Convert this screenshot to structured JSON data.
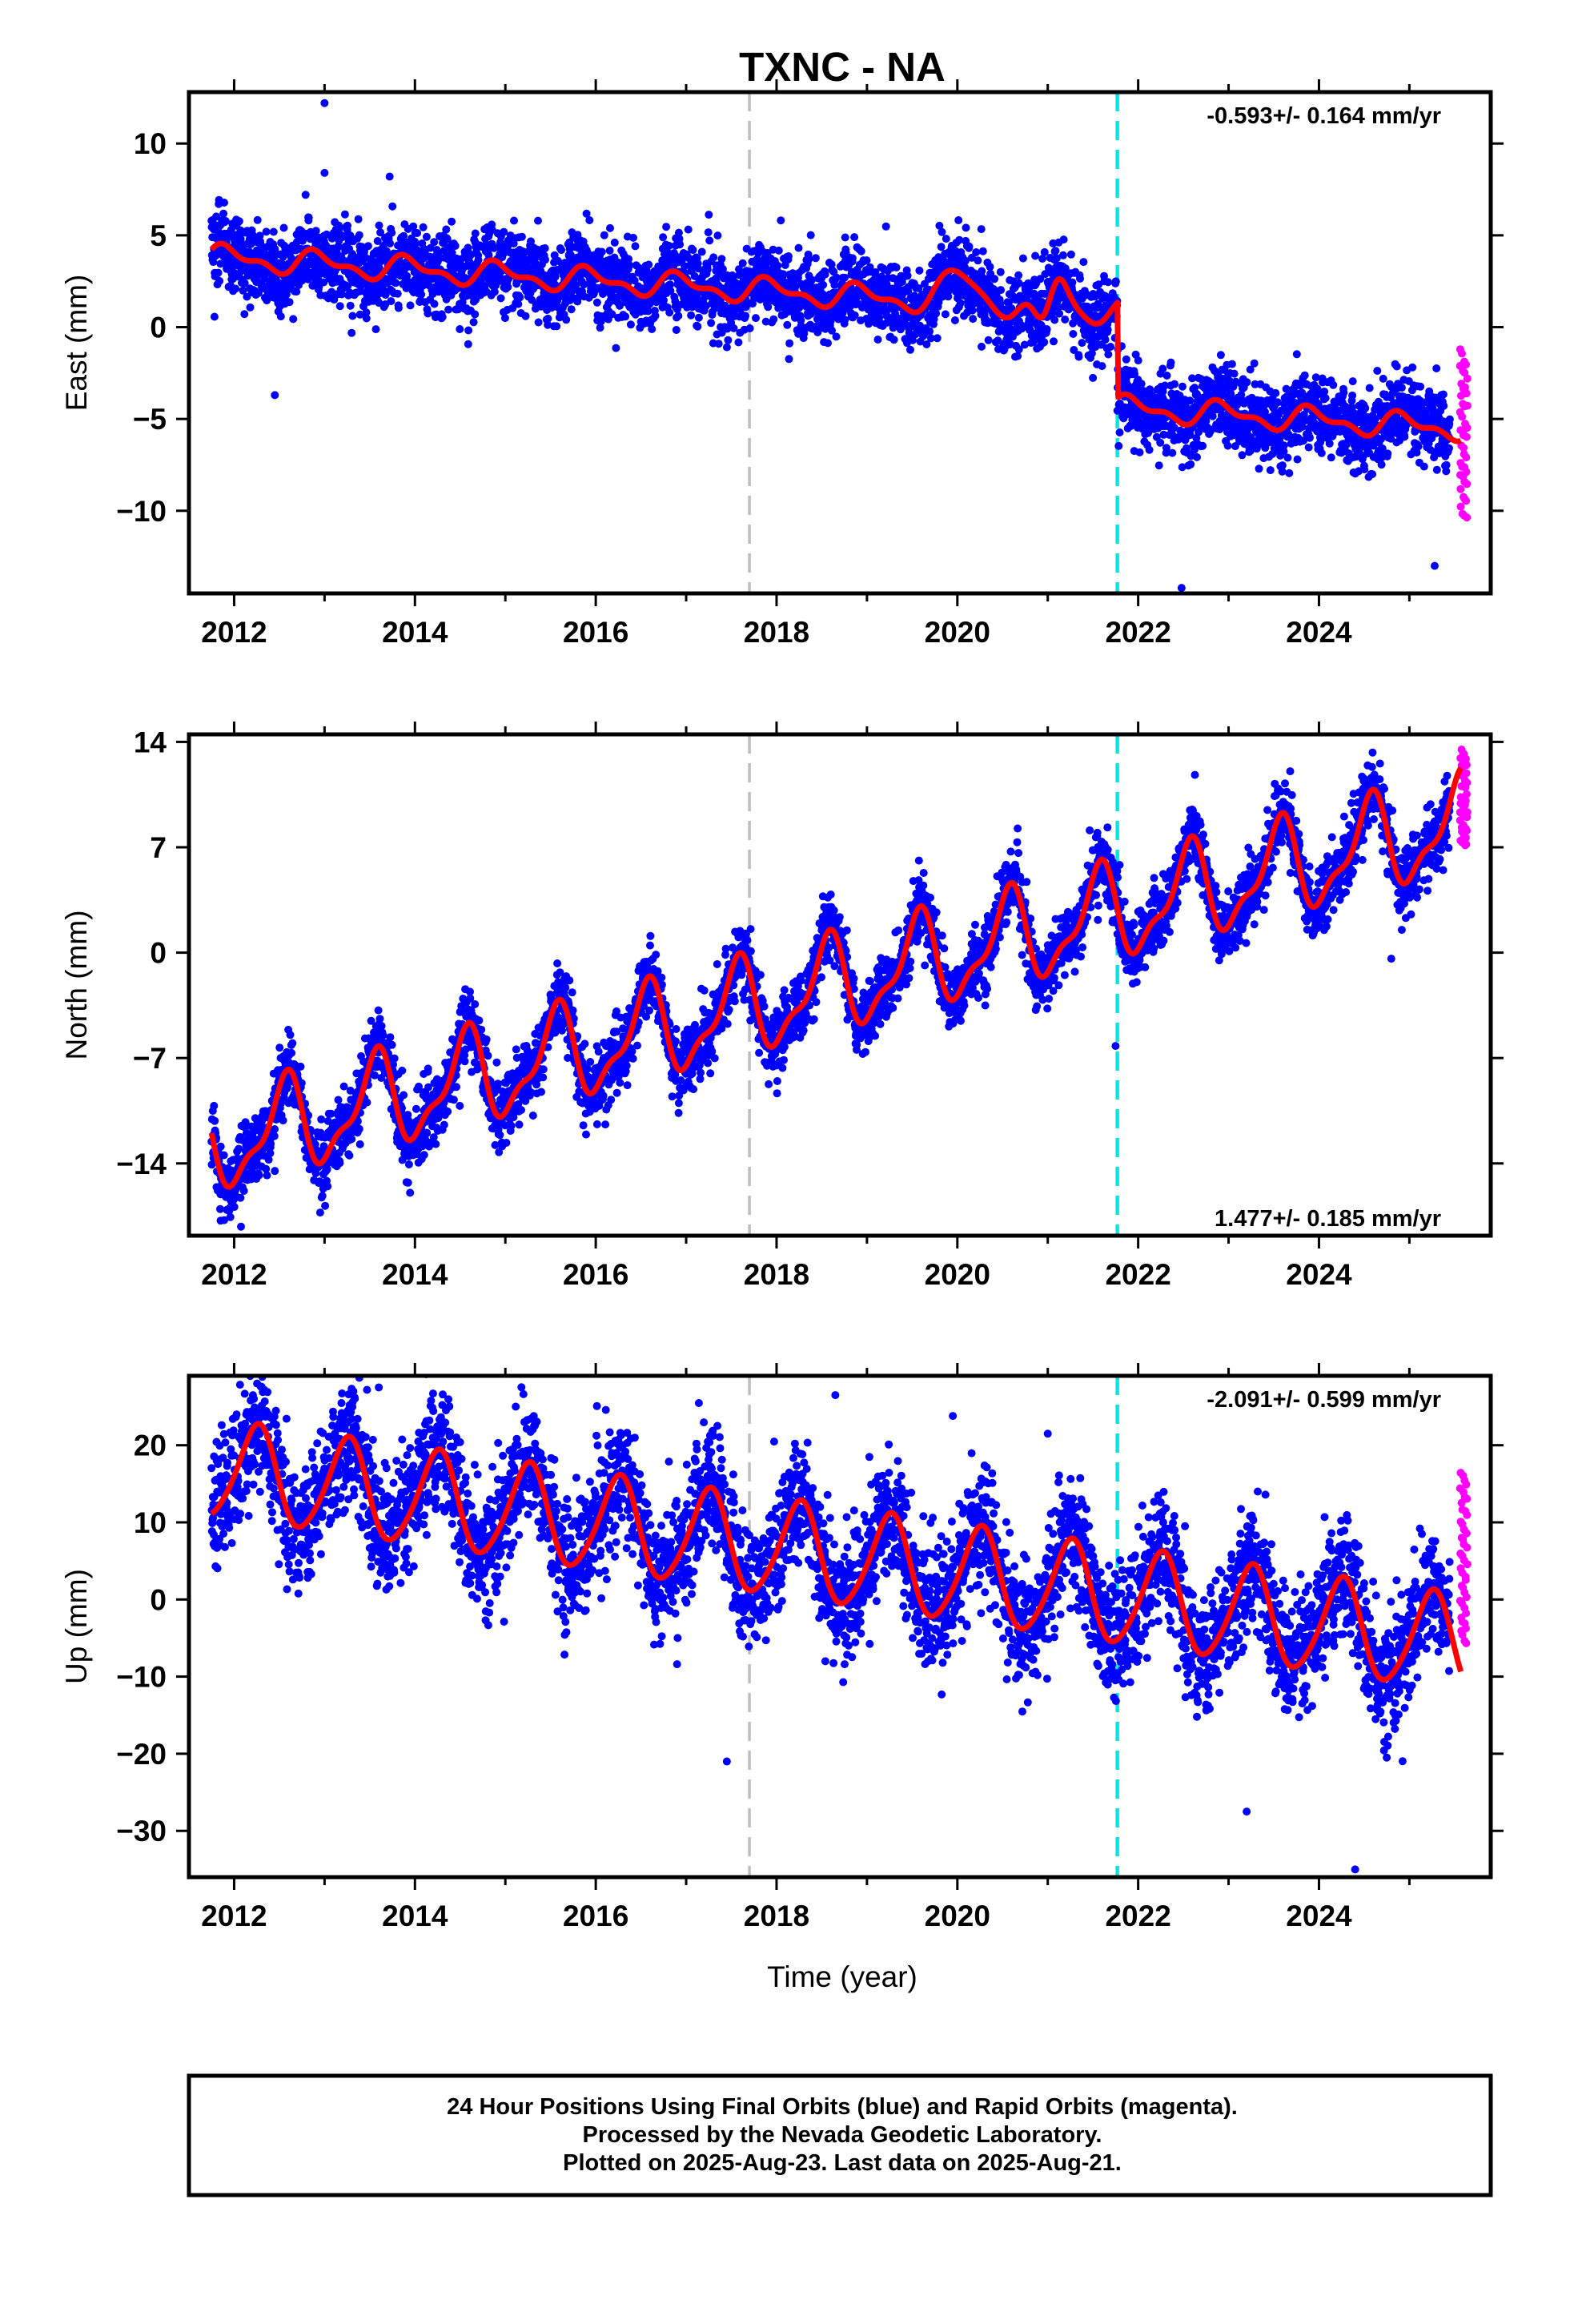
{
  "title": "TXNC - NA",
  "xlabel": "Time (year)",
  "caption": [
    "24 Hour Positions Using Final Orbits (blue) and Rapid Orbits (magenta).",
    "Processed by the Nevada Geodetic Laboratory.",
    "Plotted on 2025-Aug-23. Last data on 2025-Aug-21."
  ],
  "colors": {
    "final": "#0000ff",
    "rapid": "#ff00ff",
    "model": "#ff0000",
    "equipment_change": "#bebebe",
    "earthquake": "#00e5e5"
  },
  "chart_data": [
    {
      "type": "scatter",
      "panel": "East",
      "ylabel": "East (mm)",
      "rate": "-0.593+/- 0.164 mm/yr",
      "xlim": [
        2011.5,
        2025.9
      ],
      "ylim": [
        -14.5,
        12.8
      ],
      "yticks": [
        10,
        5,
        0,
        -5,
        -10
      ],
      "xticks": [
        2012,
        2014,
        2016,
        2018,
        2020,
        2022,
        2024
      ],
      "vlines": [
        {
          "x": 2017.7,
          "kind": "equipment_change"
        },
        {
          "x": 2021.77,
          "kind": "earthquake"
        }
      ],
      "offsets": [
        {
          "x": 2021.77,
          "jump": -5.2
        }
      ],
      "model": {
        "trend": -0.3,
        "annual": 0.55,
        "annual_phase": 0.12,
        "semiannual": 0.3,
        "semi_phase": 0.6,
        "anchor": [
          2011.8,
          3.8
        ]
      },
      "bumps": [
        {
          "x": 2020.05,
          "amp": 1.4,
          "w": 0.25
        },
        {
          "x": 2020.95,
          "amp": -1.8,
          "w": 0.15
        },
        {
          "x": 2021.1,
          "amp": 2.2,
          "w": 0.15
        }
      ],
      "scatter_sd": 1.05,
      "series": [
        {
          "name": "Final Orbits",
          "range": [
            2011.75,
            2025.45
          ]
        },
        {
          "name": "Rapid Orbits",
          "range": [
            2025.45,
            2025.63
          ],
          "y": [
            -1.3,
            -10.4
          ]
        }
      ],
      "outliers": [
        [
          2013.0,
          12.2
        ],
        [
          2012.45,
          -3.7
        ],
        [
          2022.48,
          -14.2
        ],
        [
          2025.28,
          -13.0
        ],
        [
          2013.0,
          8.4
        ],
        [
          2013.72,
          8.2
        ]
      ]
    },
    {
      "type": "scatter",
      "panel": "North",
      "ylabel": "North (mm)",
      "rate": "1.477+/- 0.185 mm/yr",
      "xlim": [
        2011.5,
        2025.9
      ],
      "ylim": [
        -18.8,
        14.5
      ],
      "yticks": [
        14,
        7,
        0,
        -7,
        -14
      ],
      "xticks": [
        2012,
        2014,
        2016,
        2018,
        2020,
        2022,
        2024
      ],
      "vlines": [
        {
          "x": 2017.7,
          "kind": "equipment_change"
        },
        {
          "x": 2021.77,
          "kind": "earthquake"
        }
      ],
      "offsets": [],
      "model": {
        "trend": 1.55,
        "annual": 2.9,
        "annual_phase": 0.5,
        "semiannual": 1.1,
        "semi_phase": 0.3,
        "anchor": [
          2011.8,
          -12.8
        ]
      },
      "bumps": [],
      "scatter_sd": 1.1,
      "series": [
        {
          "name": "Final Orbits",
          "range": [
            2011.75,
            2025.45
          ]
        },
        {
          "name": "Rapid Orbits",
          "range": [
            2025.45,
            2025.63
          ],
          "y": [
            13.5,
            7.1
          ]
        }
      ],
      "outliers": [
        [
          2011.85,
          -17.8
        ],
        [
          2024.8,
          -0.4
        ],
        [
          2012.45,
          -14.5
        ],
        [
          2021.75,
          -6.2
        ]
      ]
    },
    {
      "type": "scatter",
      "panel": "Up",
      "ylabel": "Up (mm)",
      "rate": "-2.091+/- 0.599 mm/yr",
      "xlim": [
        2011.5,
        2025.9
      ],
      "ylim": [
        -36.0,
        29.0
      ],
      "yticks": [
        20,
        10,
        0,
        -10,
        -20,
        -30
      ],
      "xticks": [
        2012,
        2014,
        2016,
        2018,
        2020,
        2022,
        2024
      ],
      "vlines": [
        {
          "x": 2017.7,
          "kind": "equipment_change"
        },
        {
          "x": 2021.77,
          "kind": "earthquake"
        }
      ],
      "offsets": [],
      "model": {
        "trend": -1.65,
        "annual": 6.2,
        "annual_phase": 0.8,
        "semiannual": 0.8,
        "semi_phase": 0.1,
        "anchor": [
          2011.8,
          16.8
        ]
      },
      "bumps": [],
      "scatter_sd": 4.0,
      "series": [
        {
          "name": "Final Orbits",
          "range": [
            2011.75,
            2025.45
          ]
        },
        {
          "name": "Rapid Orbits",
          "range": [
            2025.45,
            2025.63
          ],
          "y": [
            16.5,
            -5.8
          ]
        }
      ],
      "outliers": [
        [
          2013.6,
          27.5
        ],
        [
          2018.65,
          26.5
        ],
        [
          2017.45,
          -21.0
        ],
        [
          2024.4,
          -35.0
        ],
        [
          2019.95,
          23.8
        ],
        [
          2021.0,
          21.5
        ],
        [
          2023.2,
          -27.5
        ]
      ]
    }
  ]
}
